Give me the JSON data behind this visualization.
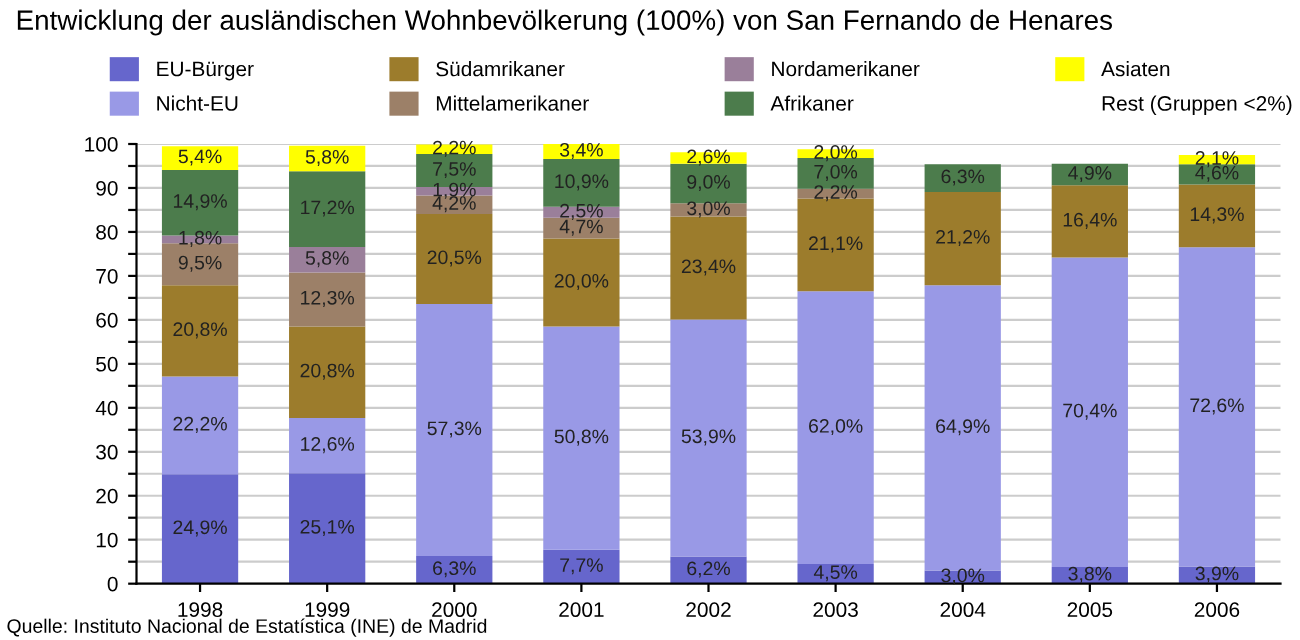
{
  "chart_data": {
    "type": "bar",
    "stacked": true,
    "title": "Entwicklung der ausländischen Wohnbevölkerung (100%) von San Fernando de Henares",
    "categories": [
      "1998",
      "1999",
      "2000",
      "2001",
      "2002",
      "2003",
      "2004",
      "2005",
      "2006"
    ],
    "series": [
      {
        "name": "EU-Bürger",
        "color": "#6666cc",
        "values": [
          24.9,
          25.1,
          6.3,
          7.7,
          6.2,
          4.5,
          3.0,
          3.8,
          3.9
        ],
        "value_labels": [
          "24,9%",
          "25,1%",
          "6,3%",
          "7,7%",
          "6,2%",
          "4,5%",
          "3,0%",
          "3,8%",
          "3,9%"
        ]
      },
      {
        "name": "Nicht-EU",
        "color": "#9999e6",
        "values": [
          22.2,
          12.6,
          57.3,
          50.8,
          53.9,
          62.0,
          64.9,
          70.4,
          72.6
        ],
        "value_labels": [
          "22,2%",
          "12,6%",
          "57,3%",
          "50,8%",
          "53,9%",
          "62,0%",
          "64,9%",
          "70,4%",
          "72,6%"
        ]
      },
      {
        "name": "Südamrikaner",
        "color": "#9c7c2c",
        "values": [
          20.8,
          20.8,
          20.5,
          20.0,
          23.4,
          21.1,
          21.2,
          16.4,
          14.3
        ],
        "value_labels": [
          "20,8%",
          "20,8%",
          "20,5%",
          "20,0%",
          "23,4%",
          "21,1%",
          "21,2%",
          "16,4%",
          "14,3%"
        ]
      },
      {
        "name": "Mittelamerikaner",
        "color": "#9c8068",
        "values": [
          9.5,
          12.3,
          4.2,
          4.7,
          3.0,
          2.2,
          null,
          null,
          null
        ],
        "value_labels": [
          "9,5%",
          "12,3%",
          "4,2%",
          "4,7%",
          "3,0%",
          "2,2%",
          null,
          null,
          null
        ]
      },
      {
        "name": "Nordamerikaner",
        "color": "#9a7f9a",
        "values": [
          1.8,
          5.8,
          1.9,
          2.5,
          null,
          null,
          null,
          null,
          null
        ],
        "value_labels": [
          "1,8%",
          "5,8%",
          "1,9%",
          "2,5%",
          null,
          null,
          null,
          null,
          null
        ]
      },
      {
        "name": "Afrikaner",
        "color": "#4c7c4c",
        "values": [
          14.9,
          17.2,
          7.5,
          10.9,
          9.0,
          7.0,
          6.3,
          4.9,
          4.6
        ],
        "value_labels": [
          "14,9%",
          "17,2%",
          "7,5%",
          "10,9%",
          "9,0%",
          "7,0%",
          "6,3%",
          "4,9%",
          "4,6%"
        ]
      },
      {
        "name": "Asiaten",
        "color": "#ffff00",
        "values": [
          5.4,
          5.8,
          2.2,
          3.4,
          2.6,
          2.0,
          null,
          null,
          2.1
        ],
        "value_labels": [
          "5,4%",
          "5,8%",
          "2,2%",
          "3,4%",
          "2,6%",
          "2,0%",
          null,
          null,
          "2,1%"
        ]
      },
      {
        "name": "Rest (Gruppen <2%)",
        "values": [
          null,
          null,
          null,
          null,
          null,
          null,
          null,
          null,
          null
        ]
      }
    ],
    "ylim": [
      0,
      100
    ],
    "yticks": [
      0,
      {
        "value": 5,
        "label": null
      },
      10,
      {
        "value": 15,
        "label": null
      },
      20,
      {
        "value": 25,
        "label": null
      },
      30,
      {
        "value": 35,
        "label": null
      },
      40,
      {
        "value": 45,
        "label": null
      },
      50,
      {
        "value": 55,
        "label": null
      },
      60,
      {
        "value": 65,
        "label": null
      },
      70,
      {
        "value": 75,
        "label": null
      },
      80,
      {
        "value": 85,
        "label": null
      },
      90,
      {
        "value": 95,
        "label": null
      },
      100
    ],
    "grid": "y",
    "legend": "top",
    "annotations": [
      "Quelle: Instituto Nacional de Estatística (INE) de Madrid"
    ]
  }
}
